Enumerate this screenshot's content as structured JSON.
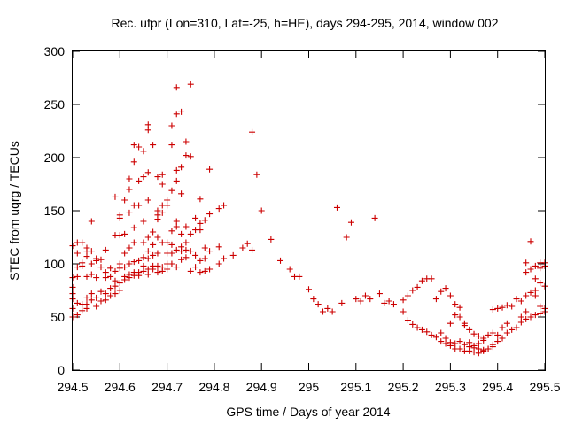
{
  "chart_data": {
    "type": "scatter",
    "title": "Rec. ufpr (Lon=310, Lat=-25, h=HE), days 294-295, 2014, window 002",
    "xlabel": "GPS time / Days of year 2014",
    "ylabel": "STEC from uqrg / TECUs",
    "xlim": [
      294.5,
      295.5
    ],
    "ylim": [
      0,
      300
    ],
    "x_ticks": [
      "294.5",
      "294.6",
      "294.7",
      "294.8",
      "294.9",
      "295",
      "295.1",
      "295.2",
      "295.3",
      "295.4",
      "295.5"
    ],
    "y_ticks": [
      "0",
      "50",
      "100",
      "150",
      "200",
      "250",
      "300"
    ],
    "grid": false,
    "marker": "plus",
    "color": "#cc0000",
    "points": [
      [
        294.5,
        50
      ],
      [
        294.5,
        58
      ],
      [
        294.5,
        67
      ],
      [
        294.5,
        72
      ],
      [
        294.5,
        78
      ],
      [
        294.5,
        87
      ],
      [
        294.5,
        117
      ],
      [
        294.51,
        52
      ],
      [
        294.51,
        63
      ],
      [
        294.51,
        88
      ],
      [
        294.51,
        97
      ],
      [
        294.51,
        110
      ],
      [
        294.51,
        120
      ],
      [
        294.52,
        56
      ],
      [
        294.52,
        62
      ],
      [
        294.52,
        98
      ],
      [
        294.52,
        101
      ],
      [
        294.52,
        120
      ],
      [
        294.53,
        58
      ],
      [
        294.53,
        62
      ],
      [
        294.53,
        68
      ],
      [
        294.53,
        88
      ],
      [
        294.53,
        107
      ],
      [
        294.53,
        112
      ],
      [
        294.53,
        115
      ],
      [
        294.54,
        66
      ],
      [
        294.54,
        72
      ],
      [
        294.54,
        90
      ],
      [
        294.54,
        100
      ],
      [
        294.54,
        112
      ],
      [
        294.54,
        140
      ],
      [
        294.55,
        60
      ],
      [
        294.55,
        68
      ],
      [
        294.55,
        87
      ],
      [
        294.55,
        103
      ],
      [
        294.55,
        105
      ],
      [
        294.56,
        65
      ],
      [
        294.56,
        74
      ],
      [
        294.56,
        97
      ],
      [
        294.56,
        104
      ],
      [
        294.57,
        66
      ],
      [
        294.57,
        72
      ],
      [
        294.57,
        87
      ],
      [
        294.57,
        92
      ],
      [
        294.57,
        113
      ],
      [
        294.58,
        70
      ],
      [
        294.58,
        77
      ],
      [
        294.58,
        88
      ],
      [
        294.58,
        96
      ],
      [
        294.59,
        72
      ],
      [
        294.59,
        79
      ],
      [
        294.59,
        84
      ],
      [
        294.59,
        93
      ],
      [
        294.59,
        127
      ],
      [
        294.59,
        163
      ],
      [
        294.6,
        75
      ],
      [
        294.6,
        82
      ],
      [
        294.6,
        96
      ],
      [
        294.6,
        100
      ],
      [
        294.6,
        127
      ],
      [
        294.6,
        143
      ],
      [
        294.6,
        146
      ],
      [
        294.61,
        85
      ],
      [
        294.61,
        88
      ],
      [
        294.61,
        97
      ],
      [
        294.61,
        110
      ],
      [
        294.61,
        128
      ],
      [
        294.61,
        160
      ],
      [
        294.62,
        87
      ],
      [
        294.62,
        90
      ],
      [
        294.62,
        100
      ],
      [
        294.62,
        115
      ],
      [
        294.62,
        148
      ],
      [
        294.62,
        170
      ],
      [
        294.62,
        180
      ],
      [
        294.63,
        89
      ],
      [
        294.63,
        92
      ],
      [
        294.63,
        102
      ],
      [
        294.63,
        120
      ],
      [
        294.63,
        134
      ],
      [
        294.63,
        155
      ],
      [
        294.63,
        196
      ],
      [
        294.63,
        212
      ],
      [
        294.64,
        89
      ],
      [
        294.64,
        92
      ],
      [
        294.64,
        103
      ],
      [
        294.64,
        155
      ],
      [
        294.64,
        178
      ],
      [
        294.64,
        210
      ],
      [
        294.65,
        93
      ],
      [
        294.65,
        98
      ],
      [
        294.65,
        106
      ],
      [
        294.65,
        120
      ],
      [
        294.65,
        140
      ],
      [
        294.65,
        182
      ],
      [
        294.65,
        206
      ],
      [
        294.66,
        90
      ],
      [
        294.66,
        95
      ],
      [
        294.66,
        105
      ],
      [
        294.66,
        112
      ],
      [
        294.66,
        125
      ],
      [
        294.66,
        160
      ],
      [
        294.66,
        186
      ],
      [
        294.66,
        226
      ],
      [
        294.66,
        231
      ],
      [
        294.67,
        95
      ],
      [
        294.67,
        98
      ],
      [
        294.67,
        108
      ],
      [
        294.67,
        118
      ],
      [
        294.67,
        130
      ],
      [
        294.67,
        212
      ],
      [
        294.68,
        92
      ],
      [
        294.68,
        98
      ],
      [
        294.68,
        110
      ],
      [
        294.68,
        125
      ],
      [
        294.68,
        142
      ],
      [
        294.68,
        146
      ],
      [
        294.68,
        150
      ],
      [
        294.68,
        182
      ],
      [
        294.69,
        93
      ],
      [
        294.69,
        97
      ],
      [
        294.69,
        120
      ],
      [
        294.69,
        148
      ],
      [
        294.69,
        155
      ],
      [
        294.69,
        175
      ],
      [
        294.69,
        184
      ],
      [
        294.7,
        95
      ],
      [
        294.7,
        100
      ],
      [
        294.7,
        110
      ],
      [
        294.7,
        120
      ],
      [
        294.7,
        155
      ],
      [
        294.7,
        160
      ],
      [
        294.71,
        100
      ],
      [
        294.71,
        110
      ],
      [
        294.71,
        118
      ],
      [
        294.71,
        131
      ],
      [
        294.71,
        169
      ],
      [
        294.71,
        212
      ],
      [
        294.71,
        230
      ],
      [
        294.72,
        97
      ],
      [
        294.72,
        113
      ],
      [
        294.72,
        135
      ],
      [
        294.72,
        140
      ],
      [
        294.72,
        178
      ],
      [
        294.72,
        188
      ],
      [
        294.72,
        241
      ],
      [
        294.72,
        266
      ],
      [
        294.73,
        104
      ],
      [
        294.73,
        112
      ],
      [
        294.73,
        116
      ],
      [
        294.73,
        128
      ],
      [
        294.73,
        166
      ],
      [
        294.73,
        191
      ],
      [
        294.73,
        243
      ],
      [
        294.74,
        106
      ],
      [
        294.74,
        113
      ],
      [
        294.74,
        120
      ],
      [
        294.74,
        135
      ],
      [
        294.74,
        202
      ],
      [
        294.74,
        215
      ],
      [
        294.75,
        93
      ],
      [
        294.75,
        112
      ],
      [
        294.75,
        128
      ],
      [
        294.75,
        201
      ],
      [
        294.75,
        269
      ],
      [
        294.76,
        97
      ],
      [
        294.76,
        108
      ],
      [
        294.76,
        132
      ],
      [
        294.76,
        143
      ],
      [
        294.77,
        92
      ],
      [
        294.77,
        103
      ],
      [
        294.77,
        132
      ],
      [
        294.77,
        138
      ],
      [
        294.77,
        161
      ],
      [
        294.78,
        93
      ],
      [
        294.78,
        105
      ],
      [
        294.78,
        115
      ],
      [
        294.78,
        141
      ],
      [
        294.79,
        95
      ],
      [
        294.79,
        112
      ],
      [
        294.79,
        147
      ],
      [
        294.79,
        189
      ],
      [
        294.81,
        100
      ],
      [
        294.81,
        116
      ],
      [
        294.81,
        152
      ],
      [
        294.82,
        105
      ],
      [
        294.82,
        155
      ],
      [
        294.84,
        108
      ],
      [
        294.86,
        115
      ],
      [
        294.87,
        119
      ],
      [
        294.88,
        113
      ],
      [
        294.88,
        224
      ],
      [
        294.89,
        184
      ],
      [
        294.9,
        150
      ],
      [
        294.92,
        123
      ],
      [
        294.94,
        103
      ],
      [
        294.96,
        95
      ],
      [
        294.97,
        88
      ],
      [
        294.98,
        88
      ],
      [
        295.0,
        76
      ],
      [
        295.01,
        67
      ],
      [
        295.02,
        62
      ],
      [
        295.03,
        55
      ],
      [
        295.04,
        58
      ],
      [
        295.05,
        55
      ],
      [
        295.06,
        153
      ],
      [
        295.07,
        63
      ],
      [
        295.08,
        125
      ],
      [
        295.09,
        139
      ],
      [
        295.1,
        67
      ],
      [
        295.11,
        65
      ],
      [
        295.12,
        70
      ],
      [
        295.13,
        67
      ],
      [
        295.14,
        143
      ],
      [
        295.15,
        72
      ],
      [
        295.16,
        63
      ],
      [
        295.17,
        65
      ],
      [
        295.18,
        62
      ],
      [
        295.2,
        55
      ],
      [
        295.21,
        47
      ],
      [
        295.22,
        43
      ],
      [
        295.23,
        40
      ],
      [
        295.24,
        38
      ],
      [
        295.25,
        36
      ],
      [
        295.26,
        33
      ],
      [
        295.27,
        31
      ],
      [
        295.28,
        27
      ],
      [
        295.29,
        25
      ],
      [
        295.3,
        23
      ],
      [
        295.31,
        20
      ],
      [
        295.32,
        20
      ],
      [
        295.33,
        18
      ],
      [
        295.34,
        18
      ],
      [
        295.35,
        17
      ],
      [
        295.36,
        16
      ],
      [
        295.37,
        18
      ],
      [
        295.38,
        20
      ],
      [
        295.39,
        24
      ],
      [
        295.4,
        27
      ],
      [
        295.41,
        30
      ],
      [
        295.42,
        35
      ],
      [
        295.43,
        38
      ],
      [
        295.44,
        40
      ],
      [
        295.45,
        45
      ],
      [
        295.46,
        48
      ],
      [
        295.47,
        50
      ],
      [
        295.48,
        52
      ],
      [
        295.49,
        53
      ],
      [
        295.5,
        55
      ],
      [
        295.2,
        66
      ],
      [
        295.21,
        70
      ],
      [
        295.22,
        75
      ],
      [
        295.23,
        78
      ],
      [
        295.24,
        84
      ],
      [
        295.25,
        86
      ],
      [
        295.26,
        86
      ],
      [
        295.27,
        67
      ],
      [
        295.28,
        74
      ],
      [
        295.29,
        77
      ],
      [
        295.3,
        70
      ],
      [
        295.31,
        62
      ],
      [
        295.32,
        50
      ],
      [
        295.33,
        42
      ],
      [
        295.34,
        38
      ],
      [
        295.35,
        34
      ],
      [
        295.36,
        32
      ],
      [
        295.37,
        30
      ],
      [
        295.38,
        33
      ],
      [
        295.39,
        35
      ],
      [
        295.4,
        33
      ],
      [
        295.41,
        40
      ],
      [
        295.42,
        44
      ],
      [
        295.28,
        35
      ],
      [
        295.29,
        30
      ],
      [
        295.3,
        26
      ],
      [
        295.31,
        25
      ],
      [
        295.32,
        27
      ],
      [
        295.33,
        24
      ],
      [
        295.34,
        22
      ],
      [
        295.35,
        21
      ],
      [
        295.36,
        20
      ],
      [
        295.37,
        19
      ],
      [
        295.38,
        20
      ],
      [
        295.39,
        22
      ],
      [
        295.3,
        44
      ],
      [
        295.31,
        52
      ],
      [
        295.32,
        59
      ],
      [
        295.33,
        44
      ],
      [
        295.34,
        26
      ],
      [
        295.35,
        23
      ],
      [
        295.36,
        25
      ],
      [
        295.37,
        28
      ],
      [
        295.39,
        57
      ],
      [
        295.4,
        58
      ],
      [
        295.41,
        59
      ],
      [
        295.42,
        61
      ],
      [
        295.43,
        60
      ],
      [
        295.44,
        67
      ],
      [
        295.45,
        65
      ],
      [
        295.46,
        70
      ],
      [
        295.47,
        73
      ],
      [
        295.48,
        75
      ],
      [
        295.49,
        82
      ],
      [
        295.5,
        79
      ],
      [
        295.45,
        50
      ],
      [
        295.46,
        55
      ],
      [
        295.46,
        92
      ],
      [
        295.46,
        101
      ],
      [
        295.47,
        95
      ],
      [
        295.47,
        121
      ],
      [
        295.48,
        70
      ],
      [
        295.48,
        86
      ],
      [
        295.48,
        98
      ],
      [
        295.49,
        60
      ],
      [
        295.49,
        96
      ],
      [
        295.49,
        101
      ],
      [
        295.5,
        58
      ],
      [
        295.5,
        98
      ],
      [
        295.5,
        101
      ]
    ]
  }
}
